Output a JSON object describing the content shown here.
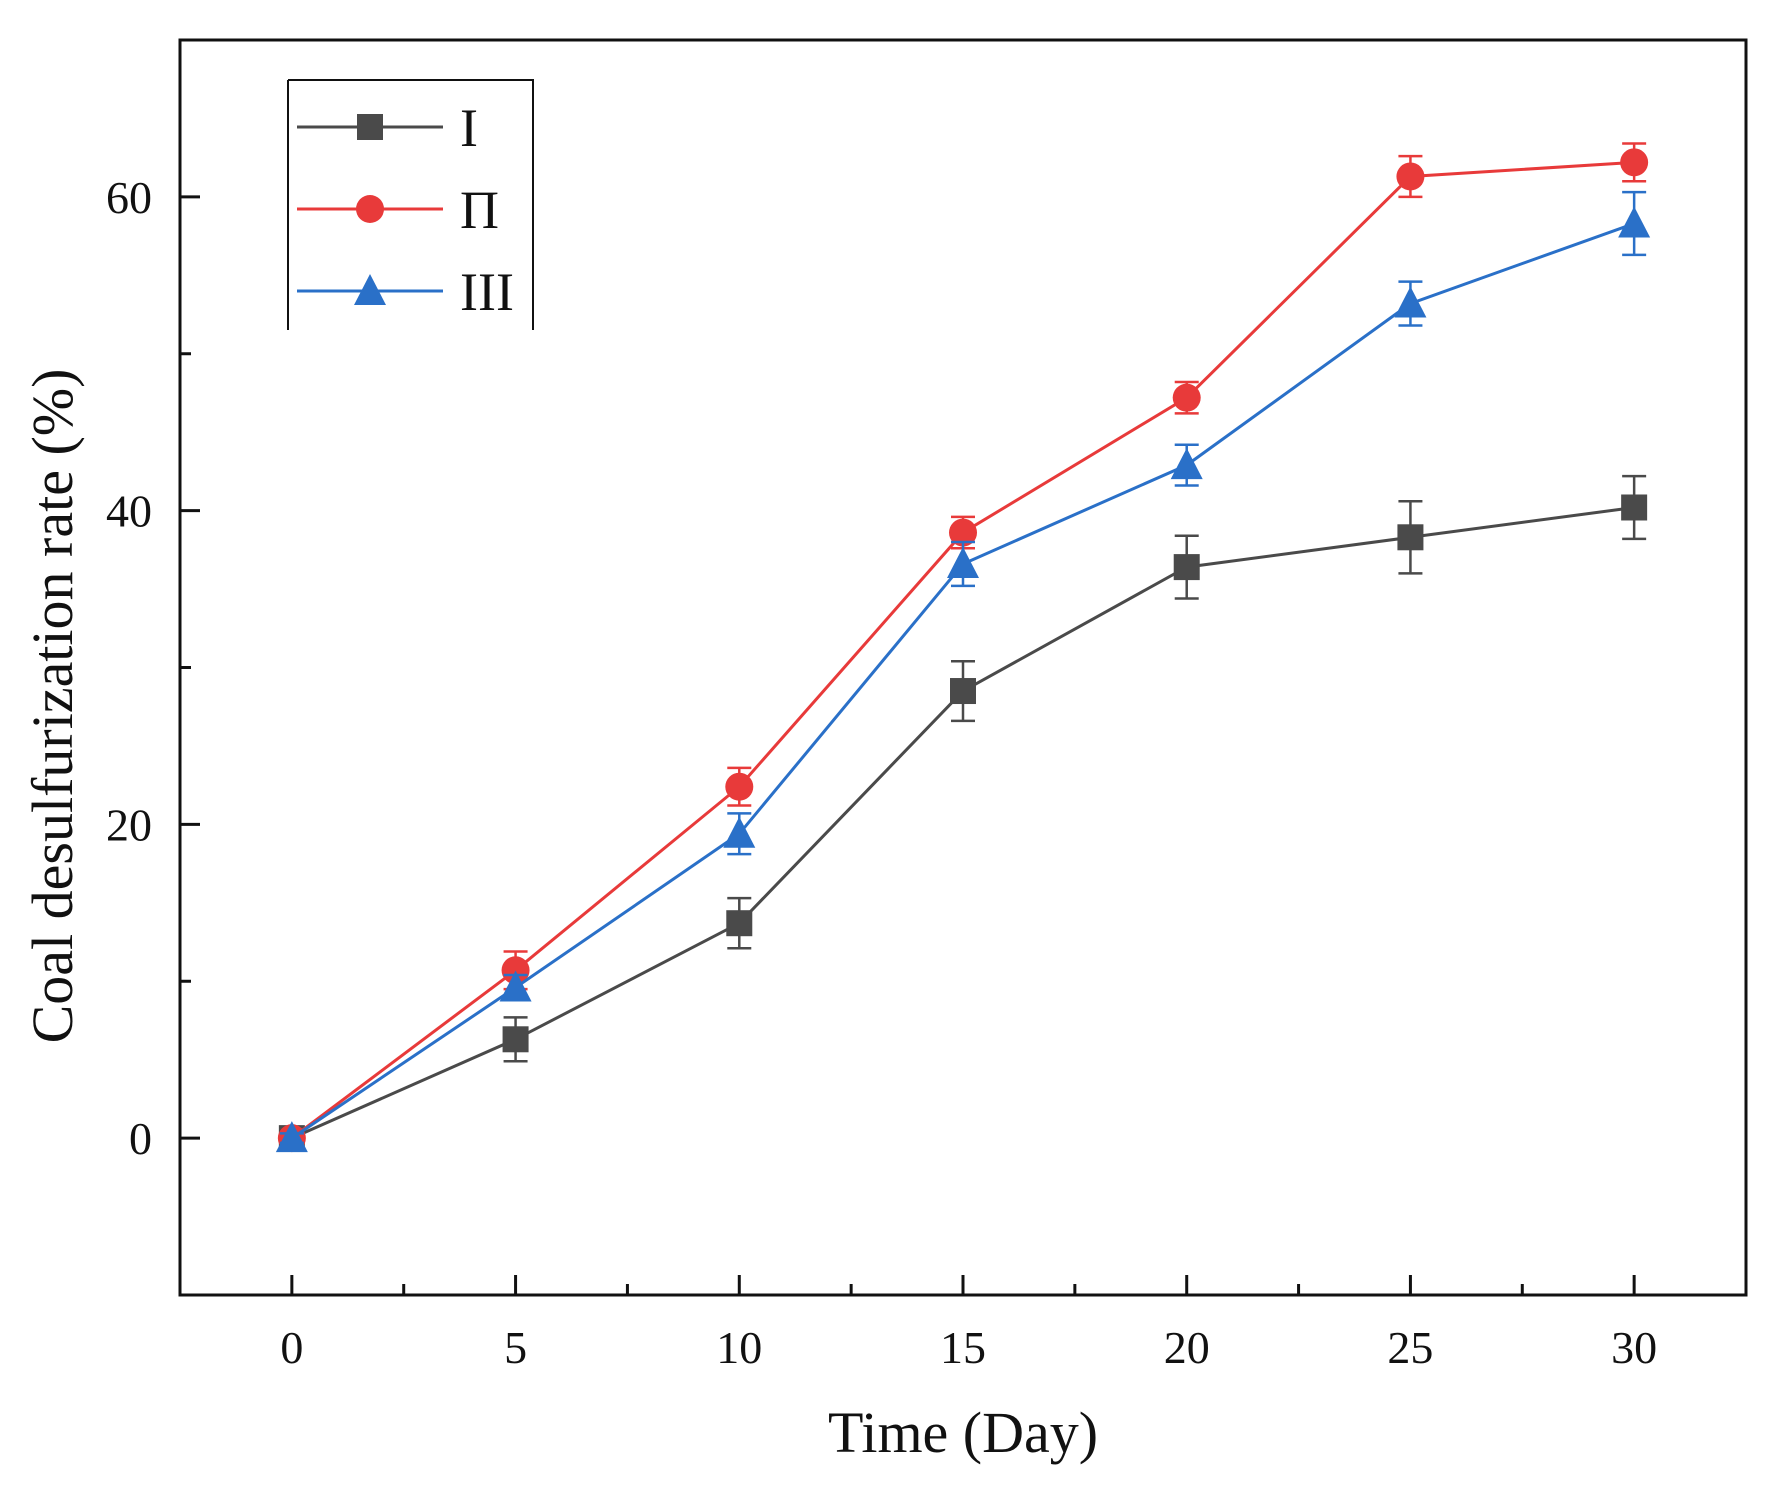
{
  "chart_data": {
    "type": "line",
    "title": "",
    "xlabel": "Time (Day)",
    "ylabel": "Coal desulfurization rate (%)",
    "x": [
      0,
      5,
      10,
      15,
      20,
      25,
      30
    ],
    "xlim": [
      -2.5,
      32.5
    ],
    "ylim": [
      -10,
      70
    ],
    "xticks": [
      0,
      5,
      10,
      15,
      20,
      25,
      30
    ],
    "yticks": [
      0,
      20,
      40,
      60
    ],
    "xtick_labels": [
      "0",
      "5",
      "10",
      "15",
      "20",
      "25",
      "30"
    ],
    "ytick_labels": [
      "0",
      "20",
      "40",
      "60"
    ],
    "legend_position": "top-left",
    "series": [
      {
        "name": "I",
        "color": "#4a4a4a",
        "marker": "square",
        "values": [
          0,
          6.3,
          13.7,
          28.5,
          36.4,
          38.3,
          40.2
        ],
        "errors": [
          0.3,
          1.4,
          1.6,
          1.9,
          2.0,
          2.3,
          2.0
        ]
      },
      {
        "name": "Π",
        "color": "#e83a3a",
        "marker": "circle",
        "values": [
          0,
          10.7,
          22.4,
          38.6,
          47.2,
          61.3,
          62.2
        ],
        "errors": [
          0.3,
          1.2,
          1.2,
          1.0,
          1.0,
          1.3,
          1.2
        ]
      },
      {
        "name": "III",
        "color": "#2a70c8",
        "marker": "triangle",
        "values": [
          0,
          9.6,
          19.4,
          36.6,
          42.9,
          53.2,
          58.3
        ],
        "errors": [
          0.3,
          0.8,
          1.3,
          1.4,
          1.3,
          1.4,
          2.0
        ]
      }
    ]
  }
}
